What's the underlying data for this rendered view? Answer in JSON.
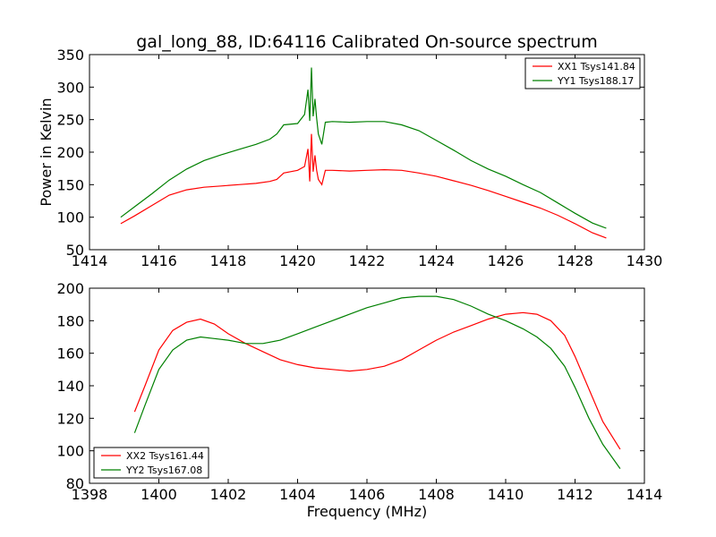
{
  "title": "gal_long_88, ID:64116 Calibrated On-source spectrum",
  "chart_data": [
    {
      "type": "line",
      "xlabel": "",
      "ylabel": "Power in Kelvin",
      "xlim": [
        1414,
        1430
      ],
      "ylim": [
        50,
        350
      ],
      "xticks": [
        "1414",
        "1416",
        "1418",
        "1420",
        "1422",
        "1424",
        "1426",
        "1428",
        "1430"
      ],
      "yticks": [
        "50",
        "100",
        "150",
        "200",
        "250",
        "300",
        "350"
      ],
      "legend_position": "top-right",
      "series": [
        {
          "name": "XX1 Tsys141.84",
          "color": "#ff0000",
          "x": [
            1414.9,
            1415.3,
            1415.8,
            1416.3,
            1416.8,
            1417.3,
            1417.8,
            1418.3,
            1418.8,
            1419.2,
            1419.4,
            1419.6,
            1420.0,
            1420.2,
            1420.3,
            1420.35,
            1420.4,
            1420.45,
            1420.5,
            1420.55,
            1420.6,
            1420.7,
            1420.8,
            1421.0,
            1421.5,
            1422.0,
            1422.5,
            1423.0,
            1423.5,
            1424.0,
            1424.5,
            1425.0,
            1425.5,
            1426.0,
            1426.5,
            1427.0,
            1427.5,
            1428.0,
            1428.5,
            1428.9
          ],
          "y": [
            90,
            102,
            118,
            134,
            142,
            146,
            148,
            150,
            152,
            155,
            158,
            168,
            172,
            178,
            205,
            155,
            228,
            170,
            195,
            172,
            158,
            150,
            172,
            172,
            171,
            172,
            173,
            172,
            168,
            163,
            156,
            149,
            141,
            132,
            123,
            114,
            103,
            90,
            76,
            68
          ]
        },
        {
          "name": "YY1 Tsys188.17",
          "color": "#008000",
          "x": [
            1414.9,
            1415.3,
            1415.8,
            1416.3,
            1416.8,
            1417.3,
            1417.8,
            1418.3,
            1418.8,
            1419.2,
            1419.4,
            1419.6,
            1420.0,
            1420.2,
            1420.3,
            1420.35,
            1420.4,
            1420.45,
            1420.5,
            1420.55,
            1420.6,
            1420.7,
            1420.8,
            1421.0,
            1421.5,
            1422.0,
            1422.5,
            1423.0,
            1423.5,
            1424.0,
            1424.5,
            1425.0,
            1425.5,
            1426.0,
            1426.5,
            1427.0,
            1427.5,
            1428.0,
            1428.5,
            1428.9
          ],
          "y": [
            100,
            116,
            136,
            157,
            174,
            187,
            196,
            204,
            212,
            220,
            228,
            242,
            244,
            258,
            296,
            248,
            330,
            255,
            282,
            252,
            228,
            212,
            246,
            247,
            246,
            247,
            247,
            242,
            233,
            218,
            203,
            187,
            174,
            163,
            150,
            138,
            122,
            106,
            91,
            83
          ]
        }
      ]
    },
    {
      "type": "line",
      "xlabel": "Frequency (MHz)",
      "ylabel": "",
      "xlim": [
        1398,
        1414
      ],
      "ylim": [
        80,
        200
      ],
      "xticks": [
        "1398",
        "1400",
        "1402",
        "1404",
        "1406",
        "1408",
        "1410",
        "1412",
        "1414"
      ],
      "yticks": [
        "80",
        "100",
        "120",
        "140",
        "160",
        "180",
        "200"
      ],
      "legend_position": "bottom-left",
      "series": [
        {
          "name": "XX2 Tsys161.44",
          "color": "#ff0000",
          "x": [
            1399.3,
            1399.6,
            1400.0,
            1400.4,
            1400.8,
            1401.2,
            1401.6,
            1402.0,
            1402.5,
            1403.0,
            1403.5,
            1404.0,
            1404.5,
            1405.0,
            1405.5,
            1406.0,
            1406.5,
            1407.0,
            1407.5,
            1408.0,
            1408.5,
            1409.0,
            1409.5,
            1410.0,
            1410.5,
            1410.9,
            1411.3,
            1411.7,
            1412.0,
            1412.4,
            1412.8,
            1413.3
          ],
          "y": [
            124,
            140,
            162,
            174,
            179,
            181,
            178,
            172,
            166,
            161,
            156,
            153,
            151,
            150,
            149,
            150,
            152,
            156,
            162,
            168,
            173,
            177,
            181,
            184,
            185,
            184,
            180,
            171,
            158,
            138,
            118,
            101
          ]
        },
        {
          "name": "YY2 Tsys167.08",
          "color": "#008000",
          "x": [
            1399.3,
            1399.6,
            1400.0,
            1400.4,
            1400.8,
            1401.2,
            1401.6,
            1402.0,
            1402.5,
            1403.0,
            1403.5,
            1404.0,
            1404.5,
            1405.0,
            1405.5,
            1406.0,
            1406.5,
            1407.0,
            1407.5,
            1408.0,
            1408.5,
            1409.0,
            1409.5,
            1410.0,
            1410.5,
            1410.9,
            1411.3,
            1411.7,
            1412.0,
            1412.4,
            1412.8,
            1413.3
          ],
          "y": [
            111,
            128,
            150,
            162,
            168,
            170,
            169,
            168,
            166,
            166,
            168,
            172,
            176,
            180,
            184,
            188,
            191,
            194,
            195,
            195,
            193,
            189,
            184,
            180,
            175,
            170,
            163,
            152,
            139,
            120,
            104,
            89
          ]
        }
      ]
    }
  ]
}
